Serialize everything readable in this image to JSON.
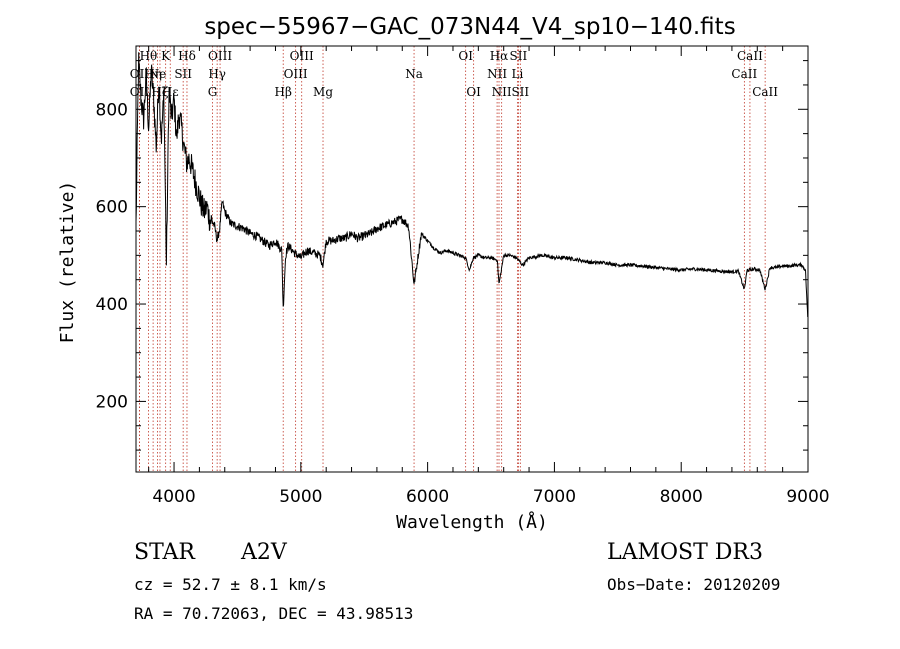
{
  "chart_data": {
    "type": "line",
    "title": "spec−55967−GAC_073N44_V4_sp10−140.fits",
    "xlabel": "Wavelength (Å)",
    "ylabel": "Flux (relative)",
    "xlim": [
      3700,
      9000
    ],
    "ylim": [
      55,
      930
    ],
    "x_ticks": [
      4000,
      5000,
      6000,
      7000,
      8000,
      9000
    ],
    "y_ticks": [
      200,
      400,
      600,
      800
    ],
    "series": [
      {
        "name": "spectrum",
        "x": [
          3700,
          3720,
          3740,
          3760,
          3780,
          3800,
          3820,
          3840,
          3860,
          3880,
          3900,
          3920,
          3940,
          3960,
          3980,
          4000,
          4020,
          4040,
          4060,
          4080,
          4100,
          4120,
          4140,
          4160,
          4180,
          4200,
          4220,
          4240,
          4260,
          4280,
          4300,
          4320,
          4340,
          4360,
          4380,
          4400,
          4450,
          4500,
          4550,
          4600,
          4650,
          4700,
          4750,
          4800,
          4850,
          4861,
          4880,
          4900,
          4950,
          5000,
          5050,
          5100,
          5150,
          5175,
          5200,
          5250,
          5300,
          5350,
          5400,
          5450,
          5500,
          5550,
          5600,
          5650,
          5700,
          5750,
          5800,
          5850,
          5893,
          5950,
          6000,
          6050,
          6100,
          6150,
          6200,
          6250,
          6300,
          6330,
          6360,
          6400,
          6450,
          6500,
          6550,
          6563,
          6600,
          6650,
          6700,
          6750,
          6800,
          6900,
          7000,
          7100,
          7200,
          7300,
          7400,
          7500,
          7600,
          7700,
          7800,
          7900,
          8000,
          8100,
          8200,
          8300,
          8400,
          8450,
          8498,
          8520,
          8542,
          8580,
          8620,
          8662,
          8700,
          8750,
          8800,
          8850,
          8900,
          8950,
          8980,
          9000
        ],
        "y": [
          560,
          900,
          820,
          780,
          870,
          760,
          880,
          820,
          720,
          860,
          740,
          830,
          480,
          840,
          780,
          820,
          740,
          790,
          760,
          720,
          690,
          700,
          680,
          660,
          640,
          620,
          600,
          590,
          600,
          575,
          570,
          560,
          530,
          555,
          610,
          590,
          565,
          560,
          555,
          545,
          540,
          530,
          520,
          530,
          510,
          390,
          500,
          520,
          505,
          495,
          510,
          505,
          500,
          480,
          530,
          530,
          535,
          535,
          545,
          535,
          540,
          545,
          555,
          560,
          565,
          570,
          575,
          560,
          440,
          545,
          530,
          515,
          505,
          510,
          505,
          500,
          495,
          470,
          495,
          500,
          495,
          495,
          490,
          440,
          500,
          500,
          495,
          480,
          495,
          500,
          495,
          495,
          490,
          485,
          485,
          480,
          480,
          478,
          475,
          472,
          470,
          472,
          470,
          468,
          466,
          468,
          430,
          470,
          470,
          472,
          470,
          430,
          475,
          475,
          478,
          478,
          480,
          480,
          470,
          360
        ]
      }
    ],
    "lines": [
      {
        "label": "OII",
        "x": 3727,
        "row": 2
      },
      {
        "label": "OII",
        "x": 3727,
        "row": 3
      },
      {
        "label": "Hθ",
        "x": 3798,
        "row": 1
      },
      {
        "label": "Hη",
        "x": 3835,
        "row": 2
      },
      {
        "label": "Hζ",
        "x": 3889,
        "row": 3
      },
      {
        "label": "K",
        "x": 3934,
        "row": 1
      },
      {
        "label": "Ne",
        "x": 3869,
        "row": 2
      },
      {
        "label": "Hε",
        "x": 3970,
        "row": 3
      },
      {
        "label": "Hδ",
        "x": 4102,
        "row": 1
      },
      {
        "label": "SII",
        "x": 4072,
        "row": 2
      },
      {
        "label": "OIII",
        "x": 4363,
        "row": 1
      },
      {
        "label": "Hγ",
        "x": 4340,
        "row": 2
      },
      {
        "label": "G",
        "x": 4304,
        "row": 3
      },
      {
        "label": "Hβ",
        "x": 4861,
        "row": 3
      },
      {
        "label": "OIII",
        "x": 5007,
        "row": 1
      },
      {
        "label": "OIII",
        "x": 4959,
        "row": 2
      },
      {
        "label": "Mg",
        "x": 5175,
        "row": 3
      },
      {
        "label": "Na",
        "x": 5893,
        "row": 2
      },
      {
        "label": "OI",
        "x": 6300,
        "row": 1
      },
      {
        "label": "OI",
        "x": 6363,
        "row": 3
      },
      {
        "label": "Hα",
        "x": 6563,
        "row": 1
      },
      {
        "label": "NII",
        "x": 6548,
        "row": 2
      },
      {
        "label": "NII",
        "x": 6584,
        "row": 3
      },
      {
        "label": "SII",
        "x": 6716,
        "row": 1
      },
      {
        "label": "Li",
        "x": 6708,
        "row": 2
      },
      {
        "label": "SII",
        "x": 6731,
        "row": 3
      },
      {
        "label": "CaII",
        "x": 8542,
        "row": 1
      },
      {
        "label": "CaII",
        "x": 8498,
        "row": 2
      },
      {
        "label": "CaII",
        "x": 8662,
        "row": 3
      }
    ]
  },
  "info": {
    "object_class": "STAR",
    "subclass": "A2V",
    "survey": "LAMOST DR3",
    "cz": "cz = 52.7 ± 8.1 km/s",
    "obs_date": "Obs−Date: 20120209",
    "coords": "RA =  70.72063, DEC =  43.98513"
  }
}
